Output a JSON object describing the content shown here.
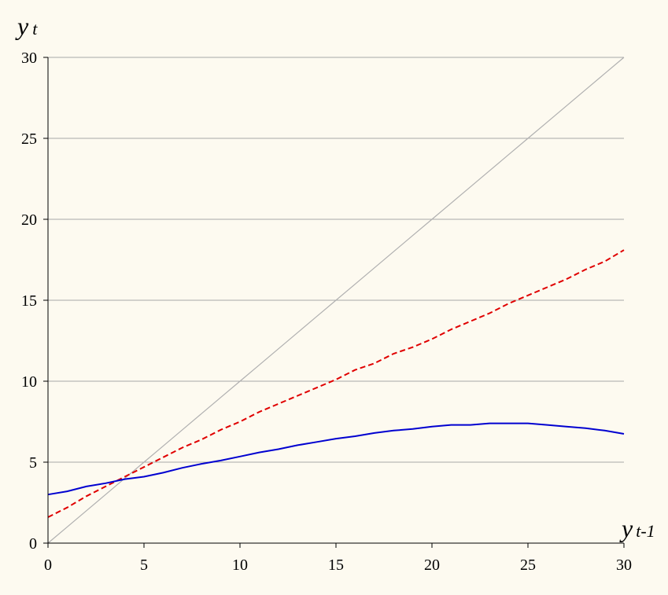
{
  "chart_data": {
    "type": "line",
    "title": "",
    "xlabel": "y",
    "xlabel_sub": "t-1",
    "ylabel": "y",
    "ylabel_sub": "t",
    "xlim": [
      0,
      30
    ],
    "ylim": [
      0,
      30
    ],
    "x_ticks": [
      0,
      5,
      10,
      15,
      20,
      25,
      30
    ],
    "y_ticks": [
      0,
      5,
      10,
      15,
      20,
      25,
      30
    ],
    "grid": "horizontal",
    "legend": "none",
    "series": [
      {
        "color": "#b0b0b0",
        "style": "solid",
        "x": [
          0,
          1,
          2,
          3,
          4,
          5,
          6,
          7,
          8,
          9,
          10,
          11,
          12,
          13,
          14,
          15,
          16,
          17,
          18,
          19,
          20,
          21,
          22,
          23,
          24,
          25,
          26,
          27,
          28,
          29,
          30
        ],
        "y": [
          0,
          1,
          2,
          3,
          4,
          5,
          6,
          7,
          8,
          9,
          10,
          11,
          12,
          13,
          14,
          15,
          16,
          17,
          18,
          19,
          20,
          21,
          22,
          23,
          24,
          25,
          26,
          27,
          28,
          29,
          30
        ]
      },
      {
        "color": "#e00000",
        "style": "dashed",
        "x": [
          0,
          1,
          2,
          3,
          4,
          5,
          6,
          7,
          8,
          9,
          10,
          11,
          12,
          13,
          14,
          15,
          16,
          17,
          18,
          19,
          20,
          21,
          22,
          23,
          24,
          25,
          26,
          27,
          28,
          29,
          30
        ],
        "y": [
          1.6,
          2.2,
          2.9,
          3.5,
          4.1,
          4.7,
          5.3,
          5.9,
          6.4,
          7.0,
          7.5,
          8.1,
          8.6,
          9.1,
          9.6,
          10.1,
          10.7,
          11.1,
          11.7,
          12.1,
          12.6,
          13.2,
          13.7,
          14.2,
          14.8,
          15.3,
          15.8,
          16.3,
          16.9,
          17.4,
          18.1
        ]
      },
      {
        "color": "#0000d0",
        "style": "solid",
        "x": [
          0,
          1,
          2,
          3,
          4,
          5,
          6,
          7,
          8,
          9,
          10,
          11,
          12,
          13,
          14,
          15,
          16,
          17,
          18,
          19,
          20,
          21,
          22,
          23,
          24,
          25,
          26,
          27,
          28,
          29,
          30
        ],
        "y": [
          3.0,
          3.2,
          3.5,
          3.7,
          3.95,
          4.1,
          4.35,
          4.65,
          4.9,
          5.1,
          5.35,
          5.6,
          5.8,
          6.05,
          6.25,
          6.45,
          6.6,
          6.8,
          6.95,
          7.05,
          7.2,
          7.3,
          7.3,
          7.4,
          7.4,
          7.4,
          7.3,
          7.2,
          7.1,
          6.95,
          6.75
        ]
      }
    ]
  }
}
